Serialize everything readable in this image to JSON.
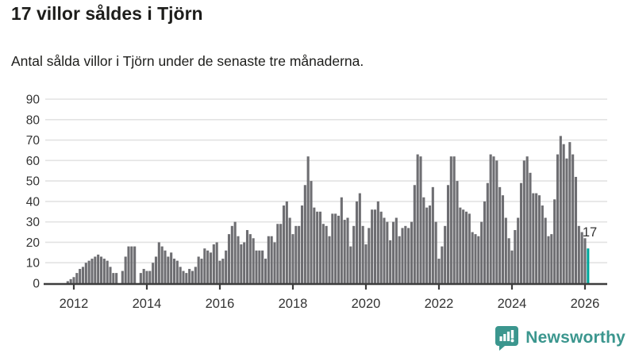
{
  "header": {
    "title": "17 villor såldes i Tjörn",
    "subtitle": "Antal sålda villor i Tjörn under de senaste tre månaderna."
  },
  "chart_data": {
    "type": "bar",
    "title": "17 villor såldes i Tjörn",
    "subtitle": "Antal sålda villor i Tjörn under de senaste tre månaderna.",
    "start_month": "2011-11",
    "end_month": "2026-02",
    "values": [
      1,
      2,
      3,
      5,
      7,
      8,
      10,
      11,
      12,
      13,
      14,
      13,
      12,
      11,
      8,
      5,
      5,
      0,
      6,
      13,
      18,
      18,
      18,
      0,
      5,
      7,
      6,
      6,
      10,
      13,
      20,
      18,
      16,
      13,
      15,
      12,
      11,
      8,
      6,
      5,
      7,
      6,
      8,
      13,
      12,
      17,
      16,
      15,
      19,
      20,
      11,
      12,
      16,
      24,
      28,
      30,
      23,
      19,
      20,
      26,
      24,
      22,
      16,
      16,
      16,
      12,
      23,
      23,
      20,
      29,
      29,
      38,
      40,
      32,
      24,
      28,
      28,
      38,
      48,
      62,
      50,
      37,
      35,
      35,
      29,
      28,
      23,
      34,
      34,
      33,
      42,
      31,
      32,
      18,
      28,
      40,
      44,
      28,
      19,
      27,
      36,
      36,
      40,
      35,
      32,
      30,
      21,
      30,
      32,
      23,
      27,
      28,
      27,
      30,
      48,
      63,
      62,
      42,
      37,
      38,
      47,
      30,
      12,
      18,
      28,
      48,
      62,
      62,
      50,
      37,
      36,
      35,
      34,
      25,
      24,
      23,
      30,
      40,
      49,
      63,
      62,
      60,
      47,
      43,
      32,
      22,
      16,
      26,
      32,
      49,
      60,
      62,
      54,
      44,
      44,
      43,
      38,
      32,
      23,
      24,
      41,
      63,
      72,
      68,
      61,
      69,
      63,
      52,
      28,
      25,
      22,
      17
    ],
    "highlight_last_value": 17,
    "annotation": {
      "label": "17"
    },
    "ylim": [
      0,
      90
    ],
    "y_ticks": [
      "0",
      "10",
      "20",
      "30",
      "40",
      "50",
      "60",
      "70",
      "80",
      "90"
    ],
    "x_ticks": [
      {
        "year": 2012,
        "label": "2012"
      },
      {
        "year": 2014,
        "label": "2014"
      },
      {
        "year": 2016,
        "label": "2016"
      },
      {
        "year": 2018,
        "label": "2018"
      },
      {
        "year": 2020,
        "label": "2020"
      },
      {
        "year": 2022,
        "label": "2022"
      },
      {
        "year": 2024,
        "label": "2024"
      },
      {
        "year": 2026,
        "label": "2026"
      }
    ],
    "grid": true,
    "legend": false,
    "colors": {
      "bar": "#6e6e72",
      "highlight": "#00a79b",
      "grid": "#e3e3e3",
      "axis": "#3d3d3d",
      "text": "#333333"
    }
  },
  "footer": {
    "brand": "Newsworthy",
    "brand_color": "#3b968e"
  }
}
